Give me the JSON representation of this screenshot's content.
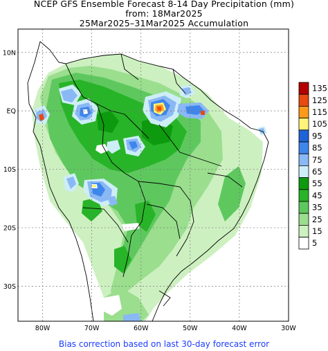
{
  "title": {
    "line1": "NCEP GFS Ensemble Forecast 8-14 Day Precipitation (mm)",
    "line2": "from: 18Mar2025",
    "line3": "25Mar2025–31Mar2025 Accumulation"
  },
  "footer": "Bias correction based on last 30-day forecast error",
  "axes": {
    "lat_labels": [
      "10N",
      "EQ",
      "10S",
      "20S",
      "30S"
    ],
    "lat_values": [
      10,
      0,
      -10,
      -20,
      -30
    ],
    "lon_labels": [
      "80W",
      "70W",
      "60W",
      "50W",
      "40W",
      "30W"
    ],
    "lon_values": [
      -80,
      -70,
      -60,
      -50,
      -40,
      -30
    ],
    "lon_range": [
      -85,
      -30
    ],
    "lat_range": [
      -36,
      14
    ]
  },
  "legend": {
    "labels": [
      "135",
      "125",
      "115",
      "105",
      "95",
      "85",
      "75",
      "65",
      "55",
      "45",
      "35",
      "25",
      "15",
      "5"
    ],
    "colors": [
      "#b40000",
      "#e84a10",
      "#ff9a1a",
      "#fff47a",
      "#1f63d8",
      "#3f86ec",
      "#8ab8f4",
      "#cdeef6",
      "#0e9a0e",
      "#28b428",
      "#5ec85e",
      "#9ade8e",
      "#cdf0c0",
      "#ffffff"
    ]
  }
}
